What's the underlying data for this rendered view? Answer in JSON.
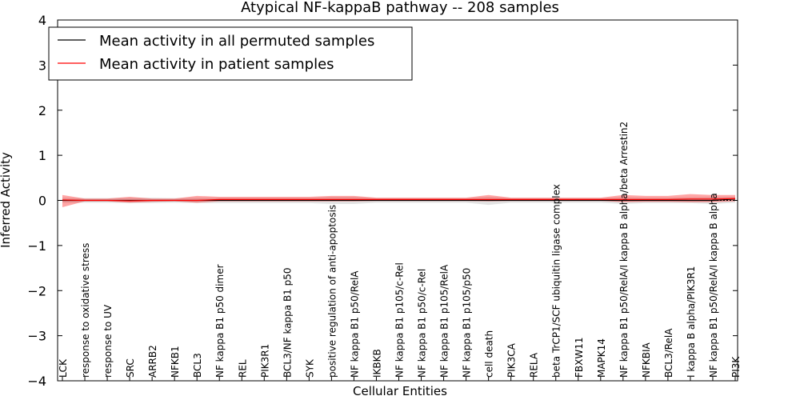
{
  "chart_data": {
    "type": "line",
    "title": "Atypical NF-kappaB pathway -- 208 samples",
    "xlabel": "Cellular Entities",
    "ylabel": "Inferred Activity",
    "ylim": [
      -4,
      4
    ],
    "yticks": [
      -4,
      -3,
      -2,
      -1,
      0,
      1,
      2,
      3,
      4
    ],
    "ytick_labels": [
      "−4",
      "−3",
      "−2",
      "−1",
      "0",
      "1",
      "2",
      "3",
      "4"
    ],
    "legend_position": "top-left",
    "grid": false,
    "categories": [
      "LCK",
      "response to oxidative stress",
      "response to UV",
      "SRC",
      "ARRB2",
      "NFKB1",
      "BCL3",
      "NF kappa B1 p50 dimer",
      "REL",
      "PIK3R1",
      "BCL3/NF kappa B1 p50",
      "SYK",
      "positive regulation of anti-apoptosis",
      "NF kappa B1 p50/RelA",
      "IKBKB",
      "NF kappa B1 p105/c-Rel",
      "NF kappa B1 p50/c-Rel",
      "NF kappa B1 p105/RelA",
      "NF kappa B1 p105/p50",
      "cell death",
      "PIK3CA",
      "RELA",
      "beta TrCP1/SCF ubiquitin ligase complex",
      "FBXW11",
      "MAPK14",
      "NF kappa B1 p50/RelA/I kappa B alpha/beta Arrestin2",
      "NFKBIA",
      "BCL3/RelA",
      "I kappa B alpha/PIK3R1",
      "NF kappa B1 p50/RelA/I kappa B alpha",
      "PI3K"
    ],
    "series": [
      {
        "name": "Mean activity in all permuted samples",
        "color": "#000000",
        "values": [
          0.0,
          0.0,
          0.0,
          0.0,
          0.0,
          0.0,
          0.0,
          0.0,
          0.0,
          0.0,
          0.0,
          0.0,
          0.0,
          0.0,
          0.0,
          0.0,
          0.0,
          0.0,
          0.0,
          0.0,
          0.0,
          0.0,
          0.0,
          0.0,
          0.0,
          0.0,
          0.0,
          0.0,
          0.0,
          0.0,
          0.03
        ],
        "band_low": [
          -0.05,
          -0.05,
          -0.05,
          -0.06,
          -0.06,
          -0.05,
          -0.06,
          -0.06,
          -0.06,
          -0.06,
          -0.06,
          -0.06,
          -0.08,
          -0.08,
          -0.05,
          -0.05,
          -0.05,
          -0.05,
          -0.05,
          -0.1,
          -0.05,
          -0.05,
          -0.05,
          -0.05,
          -0.05,
          -0.08,
          -0.06,
          -0.06,
          -0.06,
          -0.08,
          -0.05
        ],
        "band_high": [
          0.06,
          0.05,
          0.05,
          0.06,
          0.06,
          0.05,
          0.06,
          0.06,
          0.06,
          0.06,
          0.06,
          0.06,
          0.08,
          0.08,
          0.05,
          0.05,
          0.05,
          0.05,
          0.05,
          0.08,
          0.05,
          0.05,
          0.05,
          0.05,
          0.05,
          0.07,
          0.06,
          0.06,
          0.07,
          0.08,
          0.08
        ]
      },
      {
        "name": "Mean activity in patient samples",
        "color": "#ff0000",
        "values": [
          0.01,
          0.0,
          0.0,
          -0.01,
          0.0,
          0.0,
          0.0,
          0.02,
          0.02,
          0.02,
          0.02,
          0.02,
          0.02,
          0.02,
          0.02,
          0.02,
          0.02,
          0.02,
          0.02,
          0.02,
          0.02,
          0.02,
          0.02,
          0.02,
          0.02,
          0.02,
          0.02,
          0.02,
          0.03,
          0.03,
          0.04
        ],
        "band_low": [
          -0.15,
          -0.02,
          -0.02,
          -0.05,
          -0.03,
          -0.02,
          -0.05,
          -0.02,
          -0.02,
          -0.02,
          -0.02,
          -0.02,
          -0.02,
          -0.02,
          -0.01,
          -0.01,
          -0.01,
          -0.01,
          -0.01,
          -0.02,
          -0.01,
          -0.01,
          -0.01,
          -0.01,
          -0.01,
          -0.04,
          -0.03,
          -0.03,
          -0.04,
          -0.04,
          -0.02
        ],
        "band_high": [
          0.12,
          0.04,
          0.04,
          0.08,
          0.04,
          0.04,
          0.1,
          0.08,
          0.08,
          0.08,
          0.08,
          0.08,
          0.1,
          0.1,
          0.06,
          0.06,
          0.06,
          0.06,
          0.06,
          0.12,
          0.06,
          0.06,
          0.06,
          0.06,
          0.06,
          0.12,
          0.1,
          0.1,
          0.14,
          0.12,
          0.12
        ]
      }
    ]
  }
}
